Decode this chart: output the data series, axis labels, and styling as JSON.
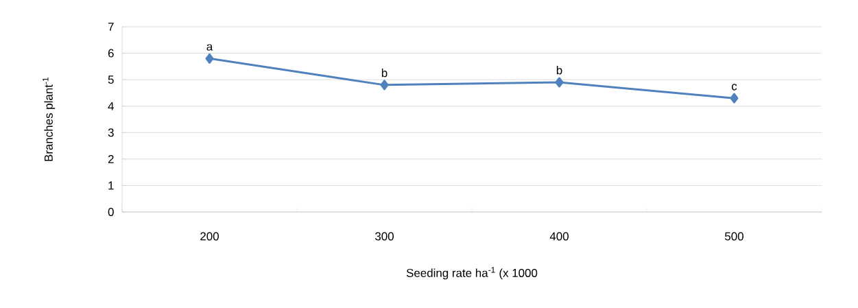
{
  "chart_data": {
    "type": "line",
    "xlabel": "Seeding rate ha$^{-1}$ (x 1000",
    "ylabel": "Branches plant$^{-1}$",
    "categories": [
      "200",
      "300",
      "400",
      "500"
    ],
    "series": [
      {
        "color": "#4f81bd",
        "values": [
          5.8,
          4.8,
          4.9,
          4.3
        ]
      }
    ],
    "ylim": [
      0,
      7
    ],
    "yticks": [
      0,
      1,
      2,
      3,
      4,
      5,
      6,
      7
    ],
    "grid": "y",
    "marker": "diamond",
    "line_style": "solid",
    "annotations": [
      {
        "text": "a",
        "x": "200",
        "y": 5.8
      },
      {
        "text": "b",
        "x": "300",
        "y": 4.8
      },
      {
        "text": "b",
        "x": "400",
        "y": 4.9
      },
      {
        "text": "c",
        "x": "500",
        "y": 4.3
      }
    ]
  }
}
